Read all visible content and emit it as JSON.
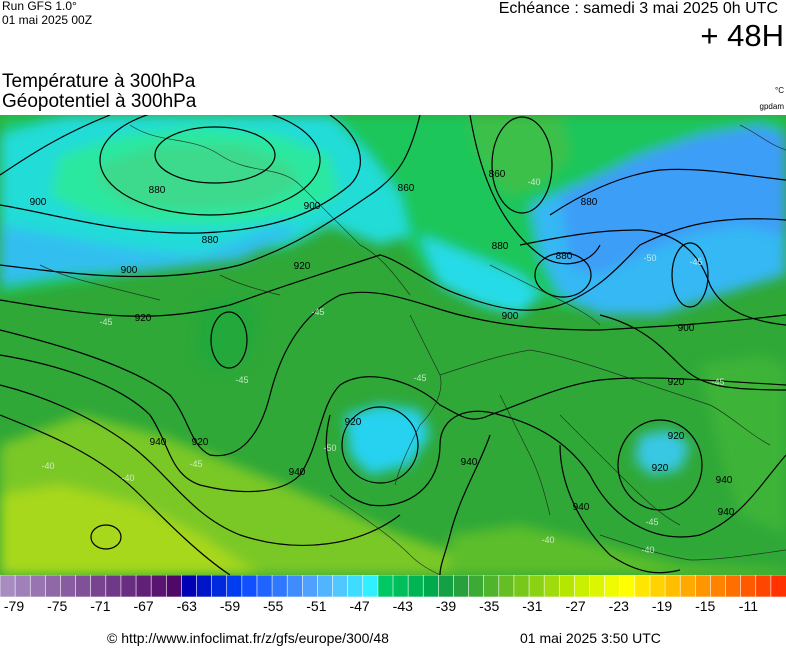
{
  "header": {
    "run_label": "Run GFS 1.0°",
    "run_date": "01 mai 2025 00Z",
    "echeance": "Echéance : samedi 3 mai 2025 0h UTC",
    "lead_time": "+ 48H",
    "title_line1": "Température à 300hPa",
    "title_line2": "Géopotentiel à 300hPa",
    "unit": "°C",
    "credit": "gpdam"
  },
  "map": {
    "contour_labels": [
      "880",
      "900",
      "860",
      "880",
      "900",
      "920",
      "880",
      "900",
      "920",
      "900",
      "920",
      "940",
      "920",
      "920",
      "940",
      "940",
      "940",
      "920",
      "940",
      "860",
      "880",
      "900",
      "880",
      "920",
      "940"
    ],
    "temp_labels": [
      "-45",
      "-45",
      "-40",
      "-40",
      "-45",
      "-50",
      "-45",
      "-40",
      "-45",
      "-50",
      "-45",
      "-40",
      "-45",
      "-40",
      "-45"
    ]
  },
  "legend": {
    "colors": [
      "#a88cc0",
      "#9f80b8",
      "#9874b0",
      "#9068a8",
      "#885ca0",
      "#805098",
      "#784490",
      "#703888",
      "#682c80",
      "#602078",
      "#581470",
      "#500868",
      "#0000b4",
      "#0014c8",
      "#0028dc",
      "#003cf0",
      "#1050ff",
      "#2064ff",
      "#3078ff",
      "#408cff",
      "#50a0ff",
      "#50b4ff",
      "#50c8ff",
      "#40dcff",
      "#30f0ff",
      "#00c864",
      "#00be5c",
      "#00b454",
      "#00aa4c",
      "#14a044",
      "#28a03c",
      "#3caa34",
      "#50b42c",
      "#64be24",
      "#78c81c",
      "#8cd214",
      "#a0dc0c",
      "#b4e600",
      "#c8f000",
      "#dcf500",
      "#f0fa00",
      "#ffff00",
      "#ffe600",
      "#ffd200",
      "#ffbe00",
      "#ffaa00",
      "#ff9600",
      "#ff8200",
      "#ff6e00",
      "#ff5a00",
      "#ff4600",
      "#ff3200"
    ],
    "ticks": [
      "-79",
      "-75",
      "-71",
      "-67",
      "-63",
      "-59",
      "-55",
      "-51",
      "-47",
      "-43",
      "-39",
      "-35",
      "-31",
      "-27",
      "-23",
      "-19",
      "-15",
      "-11"
    ]
  },
  "footer": {
    "url": "© http://www.infoclimat.fr/z/gfs/europe/300/48",
    "date": "01 mai 2025  3:50 UTC"
  }
}
